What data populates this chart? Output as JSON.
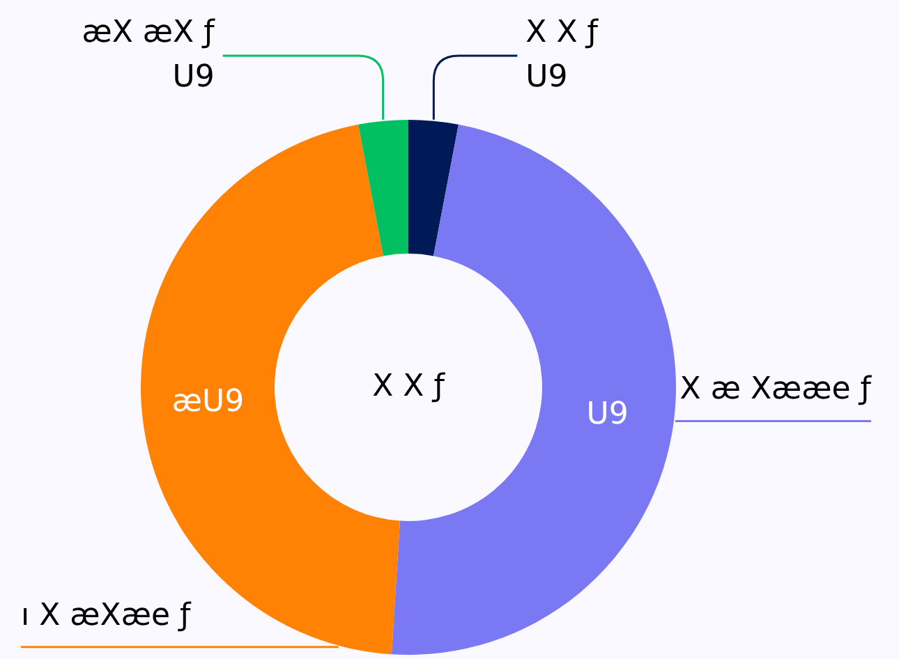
{
  "chart_data": {
    "type": "donut",
    "title": "X   X   ƒ",
    "categories": [
      "X   X   ƒ",
      "X æ Xææe ƒ",
      "ı  X  æXæe  ƒ",
      "æX  æX   ƒ"
    ],
    "values": [
      3,
      48,
      46,
      3
    ],
    "colors": [
      "#001a57",
      "#7a78f2",
      "#ff8205",
      "#00c062"
    ],
    "value_labels": [
      "U9",
      "U9",
      "æU9",
      "U9"
    ]
  }
}
